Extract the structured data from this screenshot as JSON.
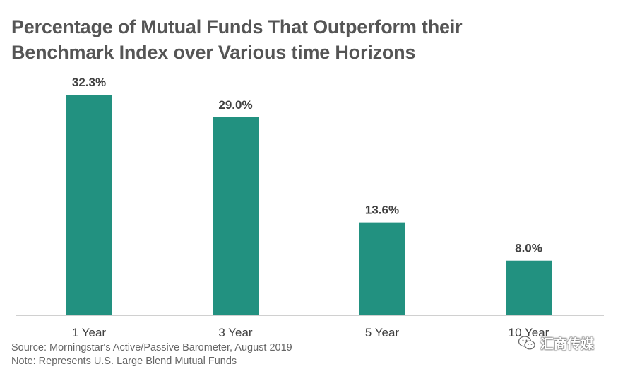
{
  "chart_data": {
    "type": "bar",
    "title_lines": [
      "Percentage of Mutual Funds That Outperform their",
      "Benchmark Index over Various time Horizons"
    ],
    "categories": [
      "1 Year",
      "3 Year",
      "5 Year",
      "10 Year"
    ],
    "values": [
      32.3,
      29.0,
      13.6,
      8.0
    ],
    "value_labels": [
      "32.3%",
      "29.0%",
      "13.6%",
      "8.0%"
    ],
    "ylim": [
      0,
      32.3
    ],
    "grid": false,
    "legend": "none",
    "bar_color": "#229180",
    "axis_color": "#d0d0d0"
  },
  "notes": {
    "source": "Source: Morningstar's Active/Passive Barometer, August 2019",
    "note": "Note: Represents U.S. Large Blend Mutual Funds"
  },
  "watermark": {
    "text": "汇商传媒",
    "icon": "wechat-icon"
  }
}
